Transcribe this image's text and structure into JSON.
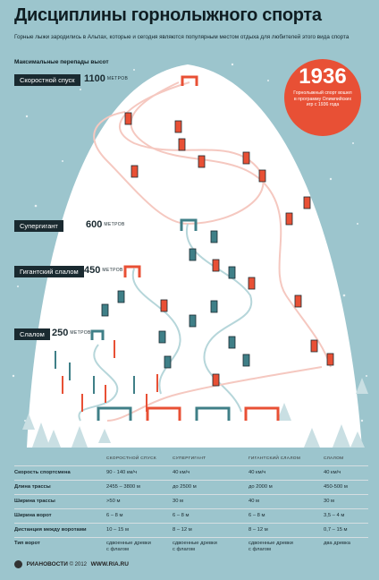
{
  "title": "Дисциплины горнолыжного спорта",
  "subtitle": "Горные лыжи зародились в Альпах, которые и сегодня являются популярным местом отдыха для любителей этого вида спорта",
  "section_label": "Максимальные перепады высот",
  "disciplines": [
    {
      "name": "Скоростной спуск",
      "drop": "1100",
      "unit": "МЕТРОВ"
    },
    {
      "name": "Супергигант",
      "drop": "600",
      "unit": "МЕТРОВ"
    },
    {
      "name": "Гигантский слалом",
      "drop": "450",
      "unit": "МЕТРОВ"
    },
    {
      "name": "Слалом",
      "drop": "250",
      "unit": "МЕТРОВ"
    }
  ],
  "badge": {
    "year": "1936",
    "note": "Горнолыжный спорт вошел в программу Олимпийских игр с 1936 года"
  },
  "table": {
    "headers": [
      "СКОРОСТНОЙ СПУСК",
      "СУПЕРГИГАНТ",
      "ГИГАНТСКИЙ СЛАЛОМ",
      "СЛАЛОМ"
    ],
    "rows": [
      {
        "label": "Скорость спортсмена",
        "values": [
          "90 - 140 км/ч",
          "40 км/ч",
          "40 км/ч",
          "40 км/ч"
        ]
      },
      {
        "label": "Длина трассы",
        "values": [
          "2455 – 3800 м",
          "до 2500 м",
          "до 2000 м",
          "450-500 м"
        ]
      },
      {
        "label": "Ширина трассы",
        "values": [
          ">50 м",
          "30 м",
          "40 м",
          "30 м"
        ]
      },
      {
        "label": "Ширина ворот",
        "values": [
          "6 – 8 м",
          "6 – 8 м",
          "6 – 8 м",
          "3,5 – 4 м"
        ]
      },
      {
        "label": "Дистанция между воротами",
        "values": [
          "10 – 15 м",
          "8 – 12 м",
          "8 – 12 м",
          "0,7 – 15 м"
        ]
      },
      {
        "label": "Тип ворот",
        "values": [
          "сдвоенные древки с флагом",
          "сдвоенные древки с флагом",
          "сдвоенные древки с флагом",
          "два древка"
        ]
      }
    ]
  },
  "footer": {
    "brand": "РИАНОВОСТИ",
    "copy": "© 2012",
    "site": "WWW.RIA.RU"
  },
  "colors": {
    "background": "#9cc5cd",
    "red": "#e85035",
    "teal": "#3f7f87",
    "dark": "#1a2a30"
  }
}
